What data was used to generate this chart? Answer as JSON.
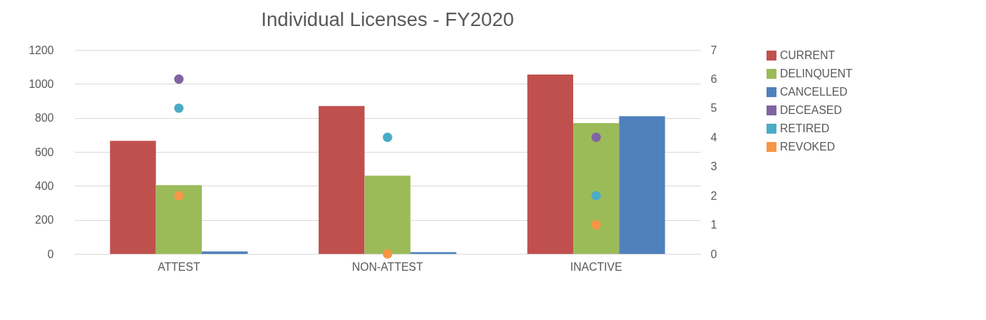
{
  "chart_data": {
    "type": "bar",
    "title": "Individual Licenses - FY2020",
    "categories": [
      "ATTEST",
      "NON-ATTEST",
      "INACTIVE"
    ],
    "series": [
      {
        "name": "CURRENT",
        "color": "#c0504d",
        "values": [
          665,
          870,
          1055
        ]
      },
      {
        "name": "DELINQUENT",
        "color": "#9bbb59",
        "values": [
          405,
          460,
          770
        ]
      },
      {
        "name": "CANCELLED",
        "color": "#4f81bd",
        "values": [
          15,
          10,
          810
        ]
      },
      {
        "name": "DECEASED",
        "color": "#8064a2",
        "type": "scatter",
        "axis": "y2",
        "values": [
          6,
          null,
          4
        ]
      },
      {
        "name": "RETIRED",
        "color": "#4bacc6",
        "type": "scatter",
        "axis": "y2",
        "values": [
          5,
          4,
          2
        ]
      },
      {
        "name": "REVOKED",
        "color": "#f79646",
        "type": "scatter",
        "axis": "y2",
        "values": [
          2,
          0,
          1
        ]
      }
    ],
    "ylim": [
      0,
      1200
    ],
    "yticks": [
      0,
      200,
      400,
      600,
      800,
      1000,
      1200
    ],
    "y2lim": [
      0,
      7
    ],
    "y2ticks": [
      0,
      1,
      2,
      3,
      4,
      5,
      6,
      7
    ],
    "grid": "y",
    "legend": "right",
    "marker": "circle"
  }
}
